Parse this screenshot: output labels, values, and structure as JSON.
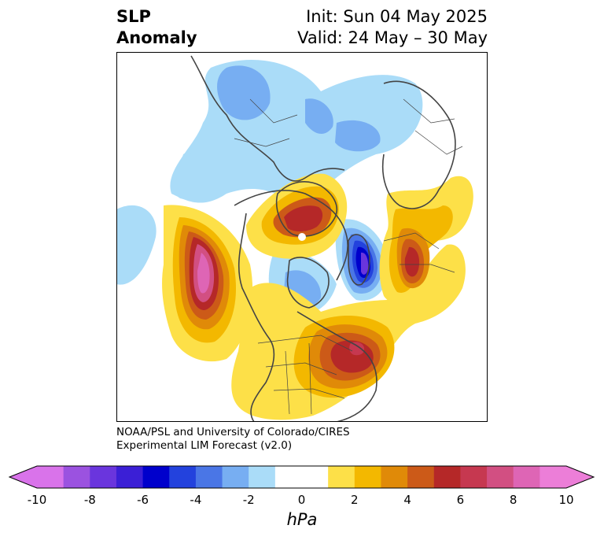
{
  "header": {
    "title_line1": "SLP",
    "title_line2": "Anomaly",
    "init": "Init: Sun 04 May 2025",
    "valid": "Valid: 24 May – 30 May"
  },
  "credit": {
    "line1": "NOAA/PSL and University of Colorado/CIRES",
    "line2": "Experimental LIM Forecast (v2.0)"
  },
  "colorbar": {
    "unit": "hPa",
    "tick_labels": [
      "-10",
      "-8",
      "-6",
      "-4",
      "-2",
      "0",
      "2",
      "4",
      "6",
      "8",
      "10"
    ],
    "colors": [
      "#d973ea",
      "#9b52e0",
      "#6a35dd",
      "#3b1fd6",
      "#0000cc",
      "#2342dd",
      "#4a76e6",
      "#77aef2",
      "#aadcf8",
      "#ffffff",
      "#ffffff",
      "#fde048",
      "#f3b800",
      "#e08a08",
      "#cc5a18",
      "#b52828",
      "#c63850",
      "#d24f82",
      "#de65b5",
      "#ec7ed8"
    ],
    "extend_min_color": "#d973ea",
    "extend_max_color": "#ec7ed8"
  },
  "map": {
    "projection": "north polar stereographic",
    "field": "sea level pressure anomaly"
  }
}
